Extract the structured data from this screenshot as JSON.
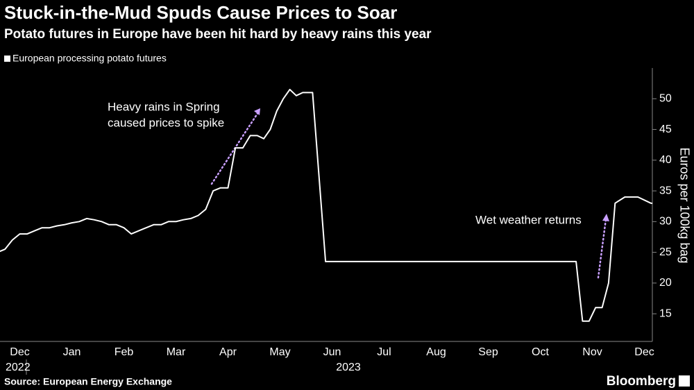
{
  "chart_data": {
    "type": "line",
    "title": "Stuck-in-the-Mud Spuds Cause Prices to Soar",
    "subtitle": "Potato futures in Europe have been hit hard by heavy rains this year",
    "y_label": "Euros per 100kg bag",
    "source": "Source: European Energy Exchange",
    "brand": "Bloomberg",
    "annotations": [
      "Heavy rains in Spring",
      "caused prices to spike",
      "Wet weather returns"
    ],
    "xticks": [
      "Dec",
      "Jan",
      "Feb",
      "Mar",
      "Apr",
      "May",
      "Jun",
      "Jul",
      "Aug",
      "Sep",
      "Oct",
      "Nov",
      "Dec"
    ],
    "year_labels": [
      "2022",
      "2023"
    ],
    "x": [
      "Dec 2022",
      "Dec 2022",
      "Dec 2022",
      "Dec 2022",
      "Dec 2022",
      "Dec 2022",
      "Dec 2022",
      "Jan 2023",
      "Jan 2023",
      "Jan 2023",
      "Jan 2023",
      "Jan 2023",
      "Jan 2023",
      "Jan 2023",
      "Feb 2023",
      "Feb 2023",
      "Feb 2023",
      "Feb 2023",
      "Feb 2023",
      "Feb 2023",
      "Feb 2023",
      "Mar 2023",
      "Mar 2023",
      "Mar 2023",
      "Mar 2023",
      "Mar 2023",
      "Mar 2023",
      "Mar 2023",
      "Apr 2023",
      "Apr 2023",
      "Apr 2023",
      "Apr 2023",
      "Apr 2023",
      "Apr 2023",
      "Apr 2023",
      "May 2023",
      "May 2023",
      "May 2023",
      "May 2023",
      "May 2023",
      "May 2023",
      "May 2023",
      "May 2023",
      "Jun 2023",
      "Jun 2023",
      "Jun 2023",
      "Jun 2023",
      "Jul 2023",
      "Aug 2023",
      "Sep 2023",
      "Oct 2023",
      "Nov 2023",
      "Nov 2023",
      "Nov 2023",
      "Nov 2023",
      "Nov 2023",
      "Nov 2023",
      "Nov 2023",
      "Nov 2023",
      "Dec 2023",
      "Dec 2023",
      "Dec 2023",
      "Dec 2023"
    ],
    "series": [
      {
        "name": "European processing potato futures",
        "color": "#ffffff",
        "values": [
          25,
          25.5,
          27,
          28,
          28,
          28.5,
          29,
          29,
          29.3,
          29.5,
          29.8,
          30,
          30.5,
          30.3,
          30,
          29.5,
          29.5,
          29,
          28,
          28.5,
          29,
          29.5,
          29.5,
          30,
          30,
          30.3,
          30.5,
          31,
          32,
          35,
          35.5,
          35.5,
          42,
          42,
          44,
          44,
          43.5,
          45,
          48,
          50,
          51.5,
          50.5,
          51,
          51,
          23.5,
          23.5,
          23.5,
          23.5,
          23.5,
          23.5,
          23.5,
          23.5,
          23.5,
          13.8,
          13.8,
          16,
          16,
          20,
          33,
          34,
          34,
          33,
          32.8
        ]
      }
    ],
    "ylim": [
      10.5,
      55
    ],
    "yticks": [
      15,
      20,
      25,
      30,
      35,
      40,
      45,
      50
    ]
  }
}
